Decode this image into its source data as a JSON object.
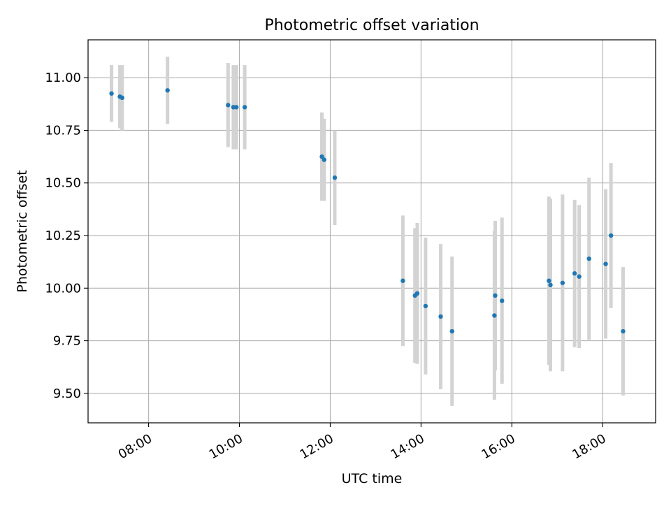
{
  "chart_data": {
    "type": "scatter",
    "title": "Photometric offset variation",
    "xlabel": "UTC time",
    "ylabel": "Photometric offset",
    "x_ticks": [
      "08:00",
      "10:00",
      "12:00",
      "14:00",
      "16:00",
      "18:00"
    ],
    "y_ticks": [
      "9.50",
      "9.75",
      "10.00",
      "10.25",
      "10.50",
      "10.75",
      "11.00"
    ],
    "xlim": [
      "06:40",
      "19:10"
    ],
    "ylim": [
      9.36,
      11.18
    ],
    "grid": true,
    "colors": {
      "point": "#1f77b4",
      "errorbar": "#d3d3d3",
      "grid": "#b0b0b0"
    },
    "points": [
      {
        "x": "07:11",
        "y": 10.925,
        "err": 0.135
      },
      {
        "x": "07:22",
        "y": 10.91,
        "err": 0.15
      },
      {
        "x": "07:25",
        "y": 10.905,
        "err": 0.155
      },
      {
        "x": "08:25",
        "y": 10.94,
        "err": 0.16
      },
      {
        "x": "09:45",
        "y": 10.87,
        "err": 0.2
      },
      {
        "x": "09:52",
        "y": 10.86,
        "err": 0.2
      },
      {
        "x": "09:56",
        "y": 10.86,
        "err": 0.2
      },
      {
        "x": "10:07",
        "y": 10.86,
        "err": 0.2
      },
      {
        "x": "11:49",
        "y": 10.625,
        "err": 0.21
      },
      {
        "x": "11:52",
        "y": 10.61,
        "err": 0.195
      },
      {
        "x": "12:06",
        "y": 10.525,
        "err": 0.225
      },
      {
        "x": "13:36",
        "y": 10.035,
        "err": 0.31
      },
      {
        "x": "13:52",
        "y": 9.965,
        "err": 0.32
      },
      {
        "x": "13:55",
        "y": 9.975,
        "err": 0.335
      },
      {
        "x": "14:06",
        "y": 9.915,
        "err": 0.325
      },
      {
        "x": "14:26",
        "y": 9.865,
        "err": 0.345
      },
      {
        "x": "14:41",
        "y": 9.795,
        "err": 0.355
      },
      {
        "x": "15:37",
        "y": 9.87,
        "err": 0.4
      },
      {
        "x": "15:38",
        "y": 9.965,
        "err": 0.355
      },
      {
        "x": "15:47",
        "y": 9.94,
        "err": 0.395
      },
      {
        "x": "16:49",
        "y": 10.035,
        "err": 0.4
      },
      {
        "x": "16:51",
        "y": 10.015,
        "err": 0.41
      },
      {
        "x": "17:07",
        "y": 10.025,
        "err": 0.42
      },
      {
        "x": "17:23",
        "y": 10.07,
        "err": 0.35
      },
      {
        "x": "17:29",
        "y": 10.055,
        "err": 0.34
      },
      {
        "x": "17:42",
        "y": 10.14,
        "err": 0.385
      },
      {
        "x": "18:04",
        "y": 10.115,
        "err": 0.355
      },
      {
        "x": "18:11",
        "y": 10.25,
        "err": 0.345
      },
      {
        "x": "18:27",
        "y": 9.795,
        "err": 0.305
      }
    ]
  }
}
